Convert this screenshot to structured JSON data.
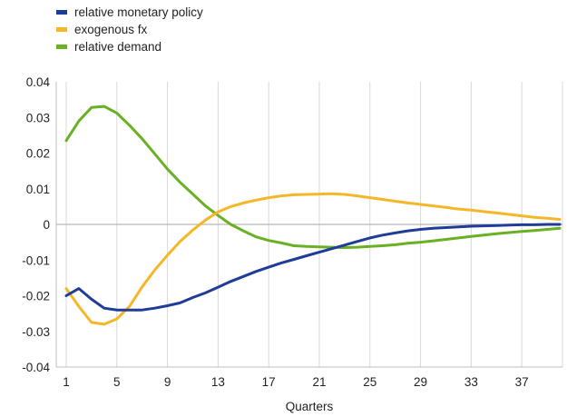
{
  "chart_data": {
    "type": "line",
    "title": "",
    "xlabel": "Quarters",
    "ylabel": "",
    "x": [
      1,
      2,
      3,
      4,
      5,
      6,
      7,
      8,
      9,
      10,
      11,
      12,
      13,
      14,
      15,
      16,
      17,
      18,
      19,
      20,
      21,
      22,
      23,
      24,
      25,
      26,
      27,
      28,
      29,
      30,
      31,
      32,
      33,
      34,
      35,
      36,
      37,
      38,
      39,
      40
    ],
    "x_ticks": [
      1,
      5,
      9,
      13,
      17,
      21,
      25,
      29,
      33,
      37
    ],
    "y_ticks": [
      0.04,
      0.03,
      0.02,
      0.01,
      0,
      -0.01,
      -0.02,
      -0.03,
      -0.04
    ],
    "y_tick_labels": [
      "0.04",
      "0.03",
      "0.02",
      "0.01",
      "0",
      "-0.01",
      "-0.02",
      "-0.03",
      "-0.04"
    ],
    "ylim": [
      -0.04,
      0.04
    ],
    "xlim": [
      1,
      40
    ],
    "grid": "vertical",
    "legend_position": "top-left",
    "series": [
      {
        "name": "relative monetary policy",
        "color": "#1f3c99",
        "values": [
          -0.02,
          -0.018,
          -0.021,
          -0.0235,
          -0.024,
          -0.024,
          -0.024,
          -0.0235,
          -0.0228,
          -0.022,
          -0.0205,
          -0.0192,
          -0.0176,
          -0.016,
          -0.0146,
          -0.0132,
          -0.012,
          -0.0108,
          -0.0098,
          -0.0088,
          -0.0078,
          -0.0068,
          -0.0058,
          -0.0048,
          -0.0038,
          -0.003,
          -0.0024,
          -0.0018,
          -0.0014,
          -0.0011,
          -0.0009,
          -0.0007,
          -0.0005,
          -0.0004,
          -0.0003,
          -0.0002,
          -0.0001,
          -0.0001,
          0.0,
          0.0
        ]
      },
      {
        "name": "exogenous fx",
        "color": "#f5b728",
        "values": [
          -0.018,
          -0.023,
          -0.0275,
          -0.028,
          -0.0265,
          -0.023,
          -0.0175,
          -0.0128,
          -0.0086,
          -0.0048,
          -0.0016,
          0.0012,
          0.0035,
          0.005,
          0.006,
          0.0068,
          0.0075,
          0.008,
          0.0083,
          0.0084,
          0.0085,
          0.0086,
          0.0084,
          0.008,
          0.0075,
          0.007,
          0.0065,
          0.006,
          0.0056,
          0.0052,
          0.0048,
          0.0043,
          0.004,
          0.0036,
          0.0032,
          0.0028,
          0.0024,
          0.002,
          0.0017,
          0.0014
        ]
      },
      {
        "name": "relative demand",
        "color": "#6ab023",
        "values": [
          0.0235,
          0.029,
          0.0328,
          0.0331,
          0.0312,
          0.0278,
          0.024,
          0.0198,
          0.0155,
          0.0118,
          0.0085,
          0.0052,
          0.0025,
          0.0,
          -0.0018,
          -0.0035,
          -0.0045,
          -0.0052,
          -0.006,
          -0.0062,
          -0.0063,
          -0.0064,
          -0.0065,
          -0.0064,
          -0.0062,
          -0.006,
          -0.0057,
          -0.0053,
          -0.005,
          -0.0046,
          -0.0042,
          -0.0038,
          -0.0034,
          -0.003,
          -0.0026,
          -0.0023,
          -0.002,
          -0.0017,
          -0.0014,
          -0.0011
        ]
      }
    ]
  }
}
